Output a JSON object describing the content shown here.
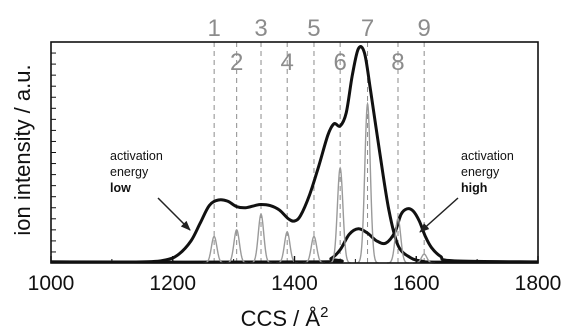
{
  "chart_data": {
    "type": "line",
    "xlabel": "CCS / Å",
    "xlabel_superscript": "2",
    "ylabel": "ion intensity / a.u.",
    "xlim": [
      1000,
      1800
    ],
    "ylim": [
      0,
      1.0
    ],
    "x_ticks": [
      1000,
      1200,
      1400,
      1600,
      1800
    ],
    "y_minor_tick_count": 20,
    "peak_markers": [
      {
        "label": "1",
        "x": 1268
      },
      {
        "label": "2",
        "x": 1305
      },
      {
        "label": "3",
        "x": 1345
      },
      {
        "label": "4",
        "x": 1388
      },
      {
        "label": "5",
        "x": 1432
      },
      {
        "label": "6",
        "x": 1475
      },
      {
        "label": "7",
        "x": 1520
      },
      {
        "label": "8",
        "x": 1570
      },
      {
        "label": "9",
        "x": 1613
      }
    ],
    "annotations": [
      {
        "lines": [
          "activation",
          "energy"
        ],
        "bold": "low",
        "points_to_x": 1232,
        "points_to_y": 0.12
      },
      {
        "lines": [
          "activation",
          "energy"
        ],
        "bold": "high",
        "points_to_x": 1610,
        "points_to_y": 0.14
      }
    ],
    "series": [
      {
        "color": "#111111",
        "x": [
          1000,
          1150,
          1190,
          1210,
          1230,
          1245,
          1260,
          1275,
          1290,
          1305,
          1320,
          1335,
          1345,
          1360,
          1375,
          1390,
          1400,
          1410,
          1425,
          1440,
          1455,
          1465,
          1475,
          1485,
          1495,
          1505,
          1515,
          1525,
          1540,
          1555,
          1570,
          1590,
          1610,
          1640,
          1800
        ],
        "y": [
          0.005,
          0.005,
          0.015,
          0.04,
          0.1,
          0.18,
          0.26,
          0.285,
          0.28,
          0.255,
          0.25,
          0.26,
          0.265,
          0.26,
          0.24,
          0.2,
          0.19,
          0.215,
          0.31,
          0.44,
          0.58,
          0.63,
          0.62,
          0.68,
          0.85,
          0.97,
          0.95,
          0.78,
          0.5,
          0.24,
          0.08,
          0.025,
          0.008,
          0.004,
          0.004
        ]
      },
      {
        "color": "#111111",
        "x": [
          1000,
          1440,
          1460,
          1475,
          1490,
          1505,
          1520,
          1535,
          1550,
          1565,
          1575,
          1585,
          1595,
          1605,
          1615,
          1625,
          1640,
          1660,
          1800
        ],
        "y": [
          0.005,
          0.005,
          0.02,
          0.06,
          0.13,
          0.155,
          0.135,
          0.1,
          0.09,
          0.14,
          0.22,
          0.245,
          0.235,
          0.19,
          0.12,
          0.07,
          0.03,
          0.01,
          0.005
        ]
      },
      {
        "color": "#9a9a9a",
        "type": "peaks",
        "width": 4.5,
        "peaks": [
          {
            "x": 1268,
            "h": 0.12
          },
          {
            "x": 1305,
            "h": 0.15
          },
          {
            "x": 1345,
            "h": 0.22
          },
          {
            "x": 1388,
            "h": 0.14
          },
          {
            "x": 1432,
            "h": 0.12
          },
          {
            "x": 1475,
            "h": 0.43
          },
          {
            "x": 1520,
            "h": 0.72
          },
          {
            "x": 1570,
            "h": 0.2
          },
          {
            "x": 1613,
            "h": 0.04
          }
        ]
      }
    ]
  }
}
